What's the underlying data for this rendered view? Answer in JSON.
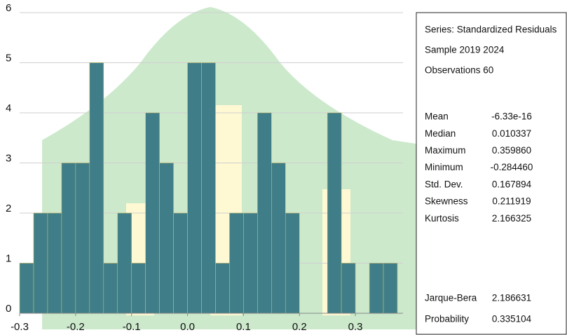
{
  "chart_data": {
    "type": "histogram",
    "bins": [
      -0.3,
      -0.275,
      -0.25,
      -0.225,
      -0.2,
      -0.175,
      -0.15,
      -0.125,
      -0.1,
      -0.075,
      -0.05,
      -0.025,
      0,
      0.025,
      0.05,
      0.075,
      0.1,
      0.125,
      0.15,
      0.175,
      0.2,
      0.225,
      0.25,
      0.275,
      0.3,
      0.325,
      0.35,
      0.375
    ],
    "values": [
      1,
      2,
      2,
      3,
      3,
      5,
      1,
      2,
      1,
      4,
      3,
      2,
      5,
      5,
      1,
      2,
      2,
      4,
      3,
      2,
      0,
      0,
      4,
      1,
      0,
      1,
      1
    ],
    "color": "#3f7e88",
    "xlim": [
      -0.3,
      0.375
    ],
    "xticks": [
      -0.3,
      -0.2,
      -0.1,
      {
        "value": 0,
        "label": "0.0"
      },
      0.1,
      0.2,
      0.3
    ],
    "ylim": [
      0,
      6
    ],
    "yticks": [
      0,
      1,
      2,
      3,
      4,
      5,
      6
    ],
    "grid": true
  },
  "stats_box": {
    "header": [
      "Series: Standardized Residuals",
      "Sample 2019 2024",
      "Observations 60"
    ],
    "rows": [
      [
        "Mean",
        "-6.33e-16"
      ],
      [
        "Median",
        "0.010337"
      ],
      [
        "Maximum",
        "0.359860"
      ],
      [
        "Minimum",
        "-0.284460"
      ],
      [
        "Std. Dev.",
        "0.167894"
      ],
      [
        "Skewness",
        "0.211919"
      ],
      [
        "Kurtosis",
        "2.166325"
      ]
    ],
    "test_rows": [
      [
        "Jarque-Bera",
        "2.186631"
      ],
      [
        "Probability",
        "0.335104"
      ]
    ]
  }
}
